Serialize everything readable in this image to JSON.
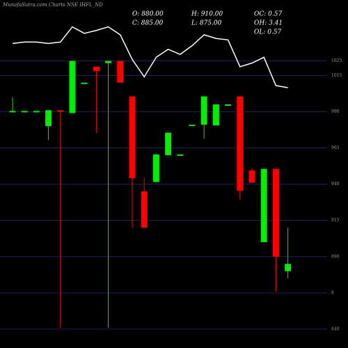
{
  "chart_data": {
    "type": "candlestick",
    "title": "MunafaSutra.com Charts NSE IHFL_ND",
    "info": [
      "O: 880.00",
      "H: 910.00",
      "OC: 0.57",
      "C: 885.00",
      "L: 875.00",
      "OH: 3.41",
      "OL: 0.57"
    ],
    "up_color": "#00ee00",
    "down_color": "#ff0000",
    "line_color": "#ffffff",
    "grid_color": "#22225e",
    "ylim": [
      827,
      1067
    ],
    "yticks": [
      1025,
      1015,
      990,
      965,
      940,
      915,
      890,
      {
        "value": 865,
        "label": "8"
      },
      840
    ],
    "series": [
      {
        "open": [
          990.5,
          990.5,
          990.5,
          980,
          991,
          989,
          1010,
          1021,
          1023.5,
          1025,
          1000.5,
          935,
          941.5,
          960,
          960.5,
          981,
          981,
          980.5,
          995,
          1000.5,
          949.5,
          900,
          950.5,
          880
        ],
        "high": [
          1000,
          990.5,
          990.5,
          991,
          991,
          1025,
          1010,
          1021,
          1025,
          1025,
          1000.5,
          944.5,
          960.5,
          975.5,
          960.5,
          981,
          1000.5,
          995,
          995,
          1000.5,
          951,
          950.5,
          950.5,
          910
        ],
        "low": [
          990,
          990.5,
          990.5,
          970.5,
          841,
          989,
          1010,
          975.5,
          841,
          1010,
          910,
          910,
          941.5,
          960,
          960.5,
          981,
          971.5,
          980.5,
          995,
          929.5,
          941,
          900,
          866,
          875
        ],
        "close": [
          990.5,
          990.5,
          990.5,
          991,
          990,
          1025,
          1010,
          1018,
          1025,
          1010,
          944,
          910,
          960.5,
          975.5,
          960.5,
          981,
          1000.5,
          995,
          995,
          935.5,
          941,
          950.5,
          890,
          885
        ]
      },
      {
        "type": "line",
        "values": [
          1037,
          1038,
          1038,
          1037,
          1038,
          1048.5,
          1044,
          1046,
          1048.5,
          1043,
          1026,
          1014,
          1027.5,
          1033,
          1029.5,
          1035.5,
          1043,
          1040.5,
          1039.5,
          1021,
          1023.5,
          1027.5,
          1008,
          1006.5
        ]
      }
    ]
  }
}
